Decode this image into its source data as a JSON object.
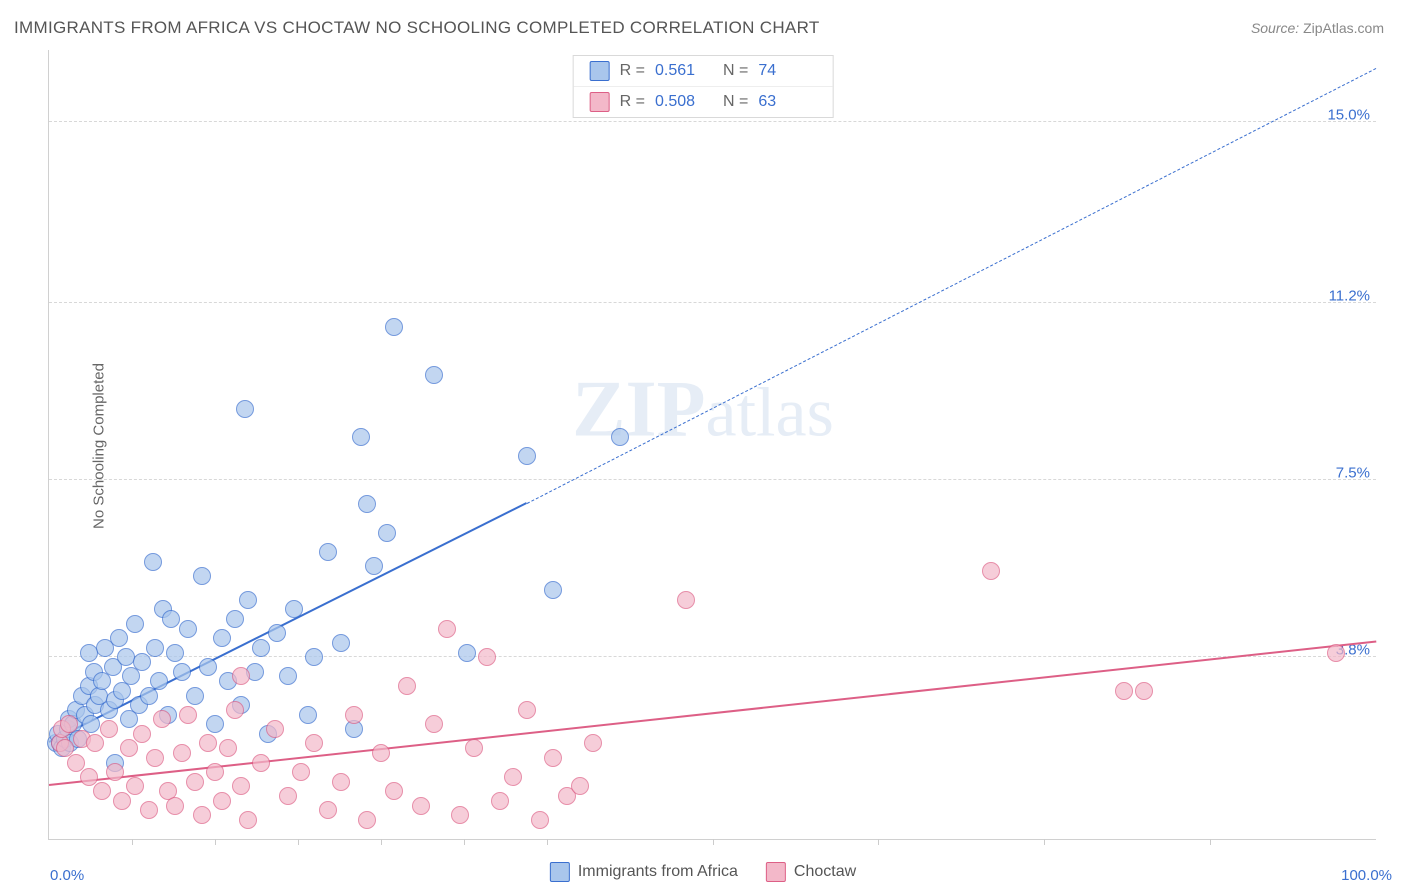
{
  "title": "IMMIGRANTS FROM AFRICA VS CHOCTAW NO SCHOOLING COMPLETED CORRELATION CHART",
  "source_label": "Source:",
  "source_value": "ZipAtlas.com",
  "ylabel": "No Schooling Completed",
  "watermark": "ZIPatlas",
  "chart": {
    "type": "scatter",
    "background_color": "#ffffff",
    "grid_color": "#d8d8d8",
    "axis_color": "#d0d0d0",
    "xlim": [
      0,
      100
    ],
    "ylim": [
      0,
      16.5
    ],
    "x_min_label": "0.0%",
    "x_max_label": "100.0%",
    "xticks": [
      6.25,
      12.5,
      18.75,
      25,
      31.25,
      37.5,
      50,
      62.5,
      75,
      87.5
    ],
    "y_gridlines": [
      {
        "value": 3.8,
        "label": "3.8%"
      },
      {
        "value": 7.5,
        "label": "7.5%"
      },
      {
        "value": 11.2,
        "label": "11.2%"
      },
      {
        "value": 15.0,
        "label": "15.0%"
      }
    ],
    "label_color": "#3a6fcf",
    "label_fontsize": 15,
    "marker_radius": 9,
    "marker_fill_opacity": 0.35,
    "marker_stroke_opacity": 0.85,
    "trend_solid_width": 2,
    "trend_dash_width": 1
  },
  "series": [
    {
      "name": "Immigrants from Africa",
      "color": "#6fa1e0",
      "stroke": "#3a6fcf",
      "fill": "#a9c6ec",
      "R": "0.561",
      "N": "74",
      "trend": {
        "x1": 0,
        "y1": 2.0,
        "x2_solid": 36,
        "y2_solid": 7.0,
        "x2": 100,
        "y2": 16.1
      },
      "points": [
        {
          "x": 0.5,
          "y": 2.0
        },
        {
          "x": 0.7,
          "y": 2.2
        },
        {
          "x": 0.8,
          "y": 2.0
        },
        {
          "x": 1.0,
          "y": 1.9
        },
        {
          "x": 1.2,
          "y": 2.1
        },
        {
          "x": 1.4,
          "y": 2.3
        },
        {
          "x": 1.5,
          "y": 2.5
        },
        {
          "x": 1.6,
          "y": 2.0
        },
        {
          "x": 1.8,
          "y": 2.4
        },
        {
          "x": 2.0,
          "y": 2.7
        },
        {
          "x": 2.2,
          "y": 2.1
        },
        {
          "x": 2.5,
          "y": 3.0
        },
        {
          "x": 2.7,
          "y": 2.6
        },
        {
          "x": 3.0,
          "y": 3.2
        },
        {
          "x": 3.2,
          "y": 2.4
        },
        {
          "x": 3.4,
          "y": 3.5
        },
        {
          "x": 3.5,
          "y": 2.8
        },
        {
          "x": 3.8,
          "y": 3.0
        },
        {
          "x": 4.0,
          "y": 3.3
        },
        {
          "x": 4.2,
          "y": 4.0
        },
        {
          "x": 4.5,
          "y": 2.7
        },
        {
          "x": 4.8,
          "y": 3.6
        },
        {
          "x": 5.0,
          "y": 2.9
        },
        {
          "x": 5.3,
          "y": 4.2
        },
        {
          "x": 5.5,
          "y": 3.1
        },
        {
          "x": 5.8,
          "y": 3.8
        },
        {
          "x": 6.0,
          "y": 2.5
        },
        {
          "x": 6.2,
          "y": 3.4
        },
        {
          "x": 6.5,
          "y": 4.5
        },
        {
          "x": 6.8,
          "y": 2.8
        },
        {
          "x": 7.0,
          "y": 3.7
        },
        {
          "x": 7.5,
          "y": 3.0
        },
        {
          "x": 8.0,
          "y": 4.0
        },
        {
          "x": 8.3,
          "y": 3.3
        },
        {
          "x": 8.6,
          "y": 4.8
        },
        {
          "x": 9.0,
          "y": 2.6
        },
        {
          "x": 9.5,
          "y": 3.9
        },
        {
          "x": 10.0,
          "y": 3.5
        },
        {
          "x": 10.5,
          "y": 4.4
        },
        {
          "x": 11.0,
          "y": 3.0
        },
        {
          "x": 11.5,
          "y": 5.5
        },
        {
          "x": 12.0,
          "y": 3.6
        },
        {
          "x": 12.5,
          "y": 2.4
        },
        {
          "x": 13.0,
          "y": 4.2
        },
        {
          "x": 13.5,
          "y": 3.3
        },
        {
          "x": 14.0,
          "y": 4.6
        },
        {
          "x": 14.5,
          "y": 2.8
        },
        {
          "x": 15.0,
          "y": 5.0
        },
        {
          "x": 15.5,
          "y": 3.5
        },
        {
          "x": 16.0,
          "y": 4.0
        },
        {
          "x": 16.5,
          "y": 2.2
        },
        {
          "x": 17.2,
          "y": 4.3
        },
        {
          "x": 18.0,
          "y": 3.4
        },
        {
          "x": 18.5,
          "y": 4.8
        },
        {
          "x": 19.5,
          "y": 2.6
        },
        {
          "x": 20.0,
          "y": 3.8
        },
        {
          "x": 21.0,
          "y": 6.0
        },
        {
          "x": 22.0,
          "y": 4.1
        },
        {
          "x": 23.0,
          "y": 2.3
        },
        {
          "x": 23.5,
          "y": 8.4
        },
        {
          "x": 24.5,
          "y": 5.7
        },
        {
          "x": 26.0,
          "y": 10.7
        },
        {
          "x": 29.0,
          "y": 9.7
        },
        {
          "x": 31.5,
          "y": 3.9
        },
        {
          "x": 36.0,
          "y": 8.0
        },
        {
          "x": 38.0,
          "y": 5.2
        },
        {
          "x": 14.8,
          "y": 9.0
        },
        {
          "x": 24.0,
          "y": 7.0
        },
        {
          "x": 25.5,
          "y": 6.4
        },
        {
          "x": 43.0,
          "y": 8.4
        },
        {
          "x": 5.0,
          "y": 1.6
        },
        {
          "x": 3.0,
          "y": 3.9
        },
        {
          "x": 7.8,
          "y": 5.8
        },
        {
          "x": 9.2,
          "y": 4.6
        }
      ]
    },
    {
      "name": "Choctaw",
      "color": "#e88fa8",
      "stroke": "#dd5f86",
      "fill": "#f3b8c9",
      "R": "0.508",
      "N": "63",
      "trend": {
        "x1": 0,
        "y1": 1.1,
        "x2_solid": 100,
        "y2_solid": 4.1,
        "x2": 100,
        "y2": 4.1
      },
      "points": [
        {
          "x": 0.8,
          "y": 2.0
        },
        {
          "x": 1.0,
          "y": 2.3
        },
        {
          "x": 1.2,
          "y": 1.9
        },
        {
          "x": 1.5,
          "y": 2.4
        },
        {
          "x": 2.0,
          "y": 1.6
        },
        {
          "x": 2.5,
          "y": 2.1
        },
        {
          "x": 3.0,
          "y": 1.3
        },
        {
          "x": 3.5,
          "y": 2.0
        },
        {
          "x": 4.0,
          "y": 1.0
        },
        {
          "x": 4.5,
          "y": 2.3
        },
        {
          "x": 5.0,
          "y": 1.4
        },
        {
          "x": 5.5,
          "y": 0.8
        },
        {
          "x": 6.0,
          "y": 1.9
        },
        {
          "x": 6.5,
          "y": 1.1
        },
        {
          "x": 7.0,
          "y": 2.2
        },
        {
          "x": 7.5,
          "y": 0.6
        },
        {
          "x": 8.0,
          "y": 1.7
        },
        {
          "x": 8.5,
          "y": 2.5
        },
        {
          "x": 9.0,
          "y": 1.0
        },
        {
          "x": 9.5,
          "y": 0.7
        },
        {
          "x": 10.0,
          "y": 1.8
        },
        {
          "x": 10.5,
          "y": 2.6
        },
        {
          "x": 11.0,
          "y": 1.2
        },
        {
          "x": 11.5,
          "y": 0.5
        },
        {
          "x": 12.0,
          "y": 2.0
        },
        {
          "x": 12.5,
          "y": 1.4
        },
        {
          "x": 13.0,
          "y": 0.8
        },
        {
          "x": 13.5,
          "y": 1.9
        },
        {
          "x": 14.0,
          "y": 2.7
        },
        {
          "x": 14.5,
          "y": 1.1
        },
        {
          "x": 15.0,
          "y": 0.4
        },
        {
          "x": 16.0,
          "y": 1.6
        },
        {
          "x": 17.0,
          "y": 2.3
        },
        {
          "x": 18.0,
          "y": 0.9
        },
        {
          "x": 19.0,
          "y": 1.4
        },
        {
          "x": 20.0,
          "y": 2.0
        },
        {
          "x": 21.0,
          "y": 0.6
        },
        {
          "x": 22.0,
          "y": 1.2
        },
        {
          "x": 23.0,
          "y": 2.6
        },
        {
          "x": 24.0,
          "y": 0.4
        },
        {
          "x": 25.0,
          "y": 1.8
        },
        {
          "x": 26.0,
          "y": 1.0
        },
        {
          "x": 27.0,
          "y": 3.2
        },
        {
          "x": 28.0,
          "y": 0.7
        },
        {
          "x": 29.0,
          "y": 2.4
        },
        {
          "x": 30.0,
          "y": 4.4
        },
        {
          "x": 31.0,
          "y": 0.5
        },
        {
          "x": 32.0,
          "y": 1.9
        },
        {
          "x": 33.0,
          "y": 3.8
        },
        {
          "x": 34.0,
          "y": 0.8
        },
        {
          "x": 35.0,
          "y": 1.3
        },
        {
          "x": 36.0,
          "y": 2.7
        },
        {
          "x": 37.0,
          "y": 0.4
        },
        {
          "x": 38.0,
          "y": 1.7
        },
        {
          "x": 39.0,
          "y": 0.9
        },
        {
          "x": 40.0,
          "y": 1.1
        },
        {
          "x": 41.0,
          "y": 2.0
        },
        {
          "x": 48.0,
          "y": 5.0
        },
        {
          "x": 71.0,
          "y": 5.6
        },
        {
          "x": 81.0,
          "y": 3.1
        },
        {
          "x": 82.5,
          "y": 3.1
        },
        {
          "x": 97.0,
          "y": 3.9
        },
        {
          "x": 14.5,
          "y": 3.4
        }
      ]
    }
  ],
  "legend_top": {
    "r_label": "R  =",
    "n_label": "N  ="
  },
  "legend_bottom_labels": [
    "Immigrants from Africa",
    "Choctaw"
  ]
}
